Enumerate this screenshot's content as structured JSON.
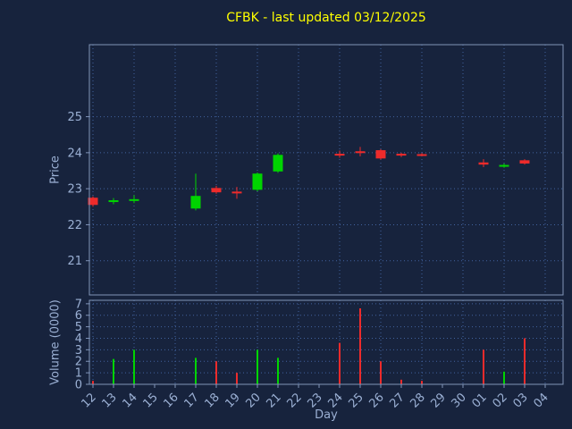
{
  "chart_data": {
    "type": "candlestick",
    "title": "CFBK - last updated 03/12/2025",
    "title_color": "#ffff00",
    "background_color": "#17233d",
    "xlabel": "Day",
    "x_labels": [
      "12",
      "13",
      "14",
      "15",
      "16",
      "17",
      "18",
      "19",
      "20",
      "21",
      "22",
      "23",
      "24",
      "25",
      "26",
      "27",
      "28",
      "29",
      "30",
      "01",
      "02",
      "03",
      "04"
    ],
    "axes": [
      {
        "name": "price",
        "ylabel": "Price",
        "ylim": [
          20.05,
          27.0
        ],
        "yticks": [
          21,
          22,
          23,
          24,
          25
        ]
      },
      {
        "name": "volume",
        "ylabel": "Volume (0000)",
        "ylim": [
          0,
          7.3
        ],
        "yticks": [
          0,
          1,
          2,
          3,
          4,
          5,
          6,
          7
        ]
      }
    ],
    "grid": {
      "show": true,
      "style": "dotted",
      "color": "#42639e",
      "x_step": 2
    },
    "colors": {
      "up": "#00d400",
      "down": "#ee2b2b",
      "axis_text": "#9bb0d4",
      "frame": "#8094b8"
    },
    "candles": [
      {
        "day": "12",
        "open": 22.75,
        "high": 22.79,
        "low": 22.5,
        "close": 22.55,
        "volume": 0.3
      },
      {
        "day": "13",
        "open": 22.64,
        "high": 22.74,
        "low": 22.57,
        "close": 22.68,
        "volume": 2.2
      },
      {
        "day": "14",
        "open": 22.68,
        "high": 22.82,
        "low": 22.6,
        "close": 22.71,
        "volume": 3.0
      },
      {
        "day": "17",
        "open": 22.45,
        "high": 23.42,
        "low": 22.4,
        "close": 22.8,
        "volume": 2.3
      },
      {
        "day": "18",
        "open": 23.02,
        "high": 23.08,
        "low": 22.86,
        "close": 22.9,
        "volume": 2.0
      },
      {
        "day": "19",
        "open": 22.92,
        "high": 23.05,
        "low": 22.72,
        "close": 22.87,
        "volume": 1.0
      },
      {
        "day": "20",
        "open": 22.97,
        "high": 23.45,
        "low": 22.93,
        "close": 23.42,
        "volume": 3.0
      },
      {
        "day": "21",
        "open": 23.48,
        "high": 23.98,
        "low": 23.44,
        "close": 23.94,
        "volume": 2.3
      },
      {
        "day": "24",
        "open": 23.97,
        "high": 24.06,
        "low": 23.86,
        "close": 23.92,
        "volume": 3.6
      },
      {
        "day": "25",
        "open": 24.04,
        "high": 24.16,
        "low": 23.9,
        "close": 23.99,
        "volume": 6.6
      },
      {
        "day": "26",
        "open": 24.07,
        "high": 24.1,
        "low": 23.81,
        "close": 23.84,
        "volume": 2.0
      },
      {
        "day": "27",
        "open": 23.97,
        "high": 24.0,
        "low": 23.88,
        "close": 23.92,
        "volume": 0.4
      },
      {
        "day": "28",
        "open": 23.96,
        "high": 23.99,
        "low": 23.9,
        "close": 23.93,
        "volume": 0.3
      },
      {
        "day": "01",
        "open": 23.73,
        "high": 23.82,
        "low": 23.6,
        "close": 23.67,
        "volume": 3.0
      },
      {
        "day": "02",
        "open": 23.62,
        "high": 23.7,
        "low": 23.58,
        "close": 23.66,
        "volume": 1.1
      },
      {
        "day": "03",
        "open": 23.79,
        "high": 23.82,
        "low": 23.67,
        "close": 23.7,
        "volume": 4.0
      }
    ]
  }
}
